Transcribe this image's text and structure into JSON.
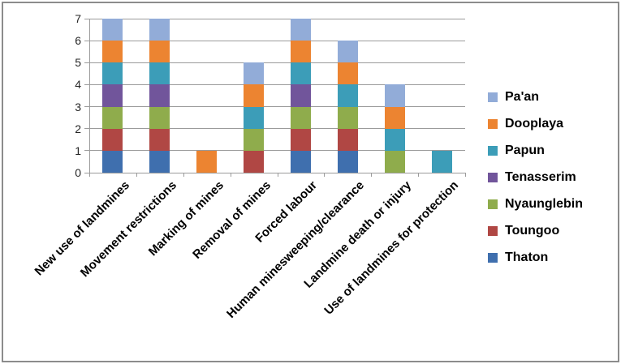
{
  "window": {
    "background": "#FFFFFF",
    "border_color": "#8C8C8C"
  },
  "chart_data": {
    "type": "bar",
    "stacked": true,
    "title": "",
    "xlabel": "",
    "ylabel": "",
    "categories": [
      "New use of landmines",
      "Movement restrictions",
      "Marking of mines",
      "Removal of mines",
      "Forced labour",
      "Human minesweeping/clearance",
      "Landmine death or injury",
      "Use of landmines for protection"
    ],
    "series": [
      {
        "name": "Thaton",
        "color": "#3F6FAE",
        "values": [
          1,
          1,
          0,
          0,
          1,
          1,
          0,
          0
        ]
      },
      {
        "name": "Toungoo",
        "color": "#B04744",
        "values": [
          1,
          1,
          0,
          1,
          1,
          1,
          0,
          0
        ]
      },
      {
        "name": "Nyaunglebin",
        "color": "#8FAC4C",
        "values": [
          1,
          1,
          0,
          1,
          1,
          1,
          1,
          0
        ]
      },
      {
        "name": "Tenasserim",
        "color": "#71559B",
        "values": [
          1,
          1,
          0,
          0,
          1,
          0,
          0,
          0
        ]
      },
      {
        "name": "Papun",
        "color": "#3C9DB8",
        "values": [
          1,
          1,
          0,
          1,
          1,
          1,
          1,
          1
        ]
      },
      {
        "name": "Dooplaya",
        "color": "#EC8431",
        "values": [
          1,
          1,
          1,
          1,
          1,
          1,
          1,
          0
        ]
      },
      {
        "name": "Pa'an",
        "color": "#92ACD8",
        "values": [
          1,
          1,
          0,
          1,
          1,
          1,
          1,
          0
        ]
      }
    ],
    "category_totals": [
      7,
      7,
      1,
      5,
      7,
      6,
      4,
      1
    ],
    "ylim": [
      0,
      7
    ],
    "yticks": [
      "0",
      "1",
      "2",
      "3",
      "4",
      "5",
      "6",
      "7"
    ],
    "grid": true,
    "grid_color": "#9B9B9B",
    "axis_color": "#9B9B9B",
    "text_color": "#000000",
    "legend_position": "right",
    "legend_order": [
      "Pa'an",
      "Dooplaya",
      "Papun",
      "Tenasserim",
      "Nyaunglebin",
      "Toungoo",
      "Thaton"
    ]
  }
}
